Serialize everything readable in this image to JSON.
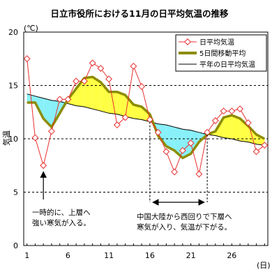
{
  "chart_data": {
    "type": "line",
    "title": "日立市役所における11月の日平均気温の推移",
    "unit_label": "(℃)",
    "ylabel": "気温",
    "xlabel": "(日)",
    "xlim": [
      1,
      30
    ],
    "ylim": [
      0,
      20
    ],
    "y_ticks": [
      0,
      5,
      10,
      15,
      20
    ],
    "x_ticks": [
      1,
      6,
      11,
      16,
      21,
      26
    ],
    "grid": "horizontal-dashed",
    "legend_position": "top-right",
    "x": [
      1,
      2,
      3,
      4,
      5,
      6,
      7,
      8,
      9,
      10,
      11,
      12,
      13,
      14,
      15,
      16,
      17,
      18,
      19,
      20,
      21,
      22,
      23,
      24,
      25,
      26,
      27,
      28,
      29,
      30
    ],
    "series": [
      {
        "name": "日平均気温",
        "style": "line-markers",
        "color": "#e83030",
        "values": [
          17.5,
          10.1,
          7.5,
          10.7,
          13.7,
          13.7,
          15.4,
          15.4,
          17.1,
          16.6,
          15.6,
          11.3,
          12.0,
          16.8,
          14.9,
          11.8,
          10.6,
          8.8,
          6.9,
          8.9,
          9.6,
          6.7,
          10.6,
          11.7,
          12.6,
          12.6,
          12.8,
          11.5,
          8.8,
          9.4
        ]
      },
      {
        "name": "5日間移動平均",
        "style": "thick-line",
        "color": "#8c8c00",
        "values": [
          13.4,
          13.4,
          11.9,
          11.1,
          12.4,
          13.7,
          14.7,
          15.7,
          15.8,
          15.3,
          14.4,
          14.4,
          14.1,
          13.2,
          13.0,
          12.3,
          10.3,
          9.3,
          8.9,
          8.2,
          8.6,
          9.7,
          10.4,
          10.7,
          12.0,
          12.2,
          11.9,
          11.2,
          10.4,
          10.0
        ]
      },
      {
        "name": "平年の日平均気温",
        "style": "thin-line",
        "color": "#000000",
        "values": [
          14.2,
          14.0,
          13.8,
          13.6,
          13.5,
          13.3,
          13.1,
          13.0,
          12.8,
          12.6,
          12.4,
          12.3,
          12.1,
          11.9,
          11.8,
          11.6,
          11.4,
          11.3,
          11.1,
          10.9,
          10.8,
          10.6,
          10.4,
          10.3,
          10.1,
          10.0,
          9.8,
          9.7,
          9.5,
          9.4
        ]
      }
    ],
    "fill": {
      "above_normal_color": "#ffff44",
      "below_normal_color": "#88f0f8"
    },
    "annotations": [
      {
        "id": "cold-snap",
        "lines": [
          "一時的に、上層へ",
          "強い寒気が入る。"
        ],
        "arrow_day": 3
      },
      {
        "id": "cold-period",
        "lines": [
          "中国大陸から西回りで下層へ",
          "寒気が入り、気温が下がる。"
        ],
        "range_days": [
          16,
          23
        ]
      }
    ]
  }
}
